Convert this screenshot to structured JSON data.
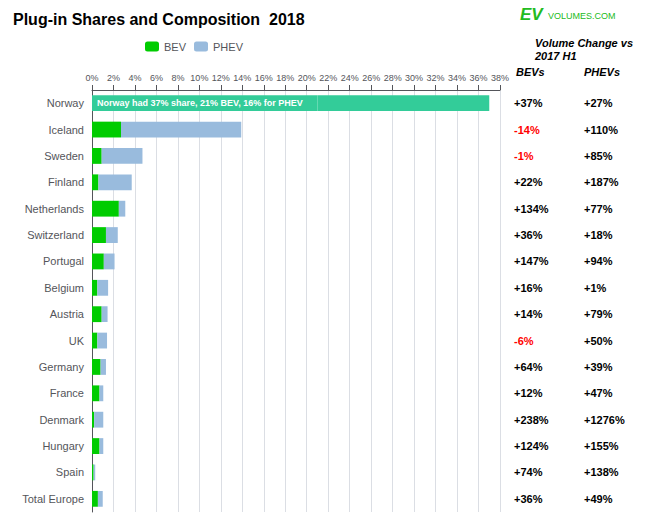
{
  "chart_data": {
    "type": "bar",
    "orientation": "horizontal",
    "stacked": true,
    "title": "Plug-in Shares and Composition  2018",
    "categories": [
      "Norway",
      "Iceland",
      "Sweden",
      "Finland",
      "Netherlands",
      "Switzerland",
      "Portugal",
      "Belgium",
      "Austria",
      "UK",
      "Germany",
      "France",
      "Denmark",
      "Hungary",
      "Spain",
      "Total Europe"
    ],
    "series": [
      {
        "name": "BEV",
        "color": "#00cc00",
        "colors": [
          "#33cc99",
          "#00cc00",
          "#00cc00",
          "#00cc00",
          "#00cc00",
          "#00cc00",
          "#00cc00",
          "#00cc00",
          "#00cc00",
          "#00cc00",
          "#00cc00",
          "#00cc00",
          "#00cc00",
          "#00cc00",
          "#00cc00",
          "#00cc00"
        ],
        "values": [
          21.0,
          2.7,
          0.9,
          0.6,
          2.5,
          1.3,
          1.1,
          0.5,
          0.9,
          0.5,
          0.8,
          0.7,
          0.2,
          0.7,
          0.15,
          0.55
        ]
      },
      {
        "name": "PHEV",
        "color": "#99bbdd",
        "colors": [
          "#33cc99",
          "#99bbdd",
          "#99bbdd",
          "#99bbdd",
          "#99bbdd",
          "#99bbdd",
          "#99bbdd",
          "#99bbdd",
          "#99bbdd",
          "#99bbdd",
          "#99bbdd",
          "#99bbdd",
          "#99bbdd",
          "#99bbdd",
          "#99bbdd",
          "#99bbdd"
        ],
        "values": [
          16.0,
          11.2,
          3.8,
          3.1,
          0.6,
          1.1,
          1.0,
          1.0,
          0.55,
          0.9,
          0.5,
          0.35,
          0.85,
          0.35,
          0.15,
          0.45
        ]
      }
    ],
    "xlim": [
      0,
      38
    ],
    "xticks": [
      {
        "value": 0,
        "label": "0%"
      },
      {
        "value": 2,
        "label": "2%"
      },
      {
        "value": 4,
        "label": "4%"
      },
      {
        "value": 6,
        "label": "6%"
      },
      {
        "value": 8,
        "label": "8%"
      },
      {
        "value": 10,
        "label": "10%"
      },
      {
        "value": 12,
        "label": "12%"
      },
      {
        "value": 14,
        "label": "14%"
      },
      {
        "value": 16,
        "label": "16%"
      },
      {
        "value": 18,
        "label": "18%"
      },
      {
        "value": 20,
        "label": "20%"
      },
      {
        "value": 22,
        "label": "22%"
      },
      {
        "value": 24,
        "label": "24%"
      },
      {
        "value": 26,
        "label": "26%"
      },
      {
        "value": 28,
        "label": "28%"
      },
      {
        "value": 30,
        "label": "30%"
      },
      {
        "value": 32,
        "label": "32%"
      },
      {
        "value": 34,
        "label": "34%"
      },
      {
        "value": 36,
        "label": "36%"
      },
      {
        "value": 38,
        "label": "38%"
      }
    ],
    "grid": true,
    "legend": "upper left",
    "annotations": [
      {
        "text": "Norway had 37% share, 21% BEV, 16% for PHEV",
        "category": "Norway"
      }
    ],
    "logo": {
      "texts": [
        "EV",
        "VOLUMES.COM"
      ],
      "color": "#22bb22"
    },
    "table": {
      "header": "Volume Change vs\n2017 H1",
      "columns": [
        "BEVs",
        "PHEVs"
      ],
      "bev_changes": [
        "+37%",
        "-14%",
        "-1%",
        "+22%",
        "+134%",
        "+36%",
        "+147%",
        "+16%",
        "+14%",
        "-6%",
        "+64%",
        "+12%",
        "+238%",
        "+124%",
        "+74%",
        "+36%"
      ],
      "phev_changes": [
        "+27%",
        "+110%",
        "+85%",
        "+187%",
        "+77%",
        "+18%",
        "+94%",
        "+1%",
        "+79%",
        "+50%",
        "+39%",
        "+47%",
        "+1276%",
        "+155%",
        "+138%",
        "+49%"
      ],
      "negative_bev": [
        false,
        true,
        true,
        false,
        false,
        false,
        false,
        false,
        false,
        true,
        false,
        false,
        false,
        false,
        false,
        false
      ],
      "negative_color": "red"
    }
  }
}
